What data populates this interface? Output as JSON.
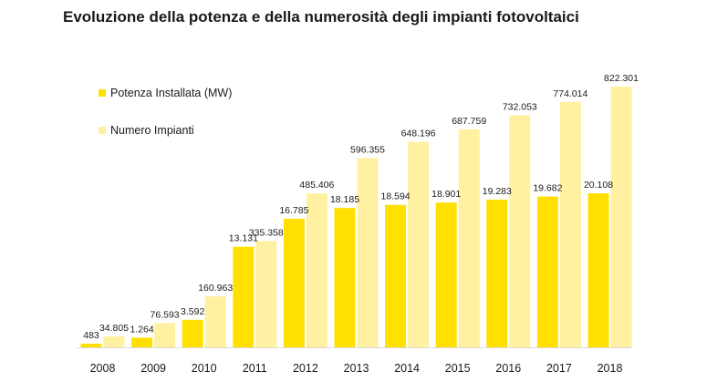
{
  "chart_data": {
    "type": "bar",
    "title": "Evoluzione della potenza e della numerosità degli impianti fotovoltaici",
    "xlabel": "",
    "ylabel": "",
    "categories": [
      "2008",
      "2009",
      "2010",
      "2011",
      "2012",
      "2013",
      "2014",
      "2015",
      "2016",
      "2017",
      "2018"
    ],
    "series": [
      {
        "name": "Potenza Installata (MW)",
        "color": "#ffe000",
        "values": [
          483,
          1264,
          3592,
          13131,
          16785,
          18185,
          18594,
          18901,
          19283,
          19682,
          20108
        ],
        "labels": [
          "483",
          "1.264",
          "3.592",
          "13.131",
          "16.785",
          "18.185",
          "18.594",
          "18.901",
          "19.283",
          "19.682",
          "20.108"
        ]
      },
      {
        "name": "Numero Impianti",
        "color": "#fff1a1",
        "values": [
          34805,
          76593,
          160963,
          335358,
          485406,
          596355,
          648196,
          687759,
          732053,
          774014,
          822301
        ],
        "labels": [
          "34.805",
          "76.593",
          "160.963",
          "335.358",
          "485.406",
          "596.355",
          "648.196",
          "687.759",
          "732.053",
          "774.014",
          "822.301"
        ]
      }
    ],
    "grid": false,
    "legend_position": "top-left"
  }
}
